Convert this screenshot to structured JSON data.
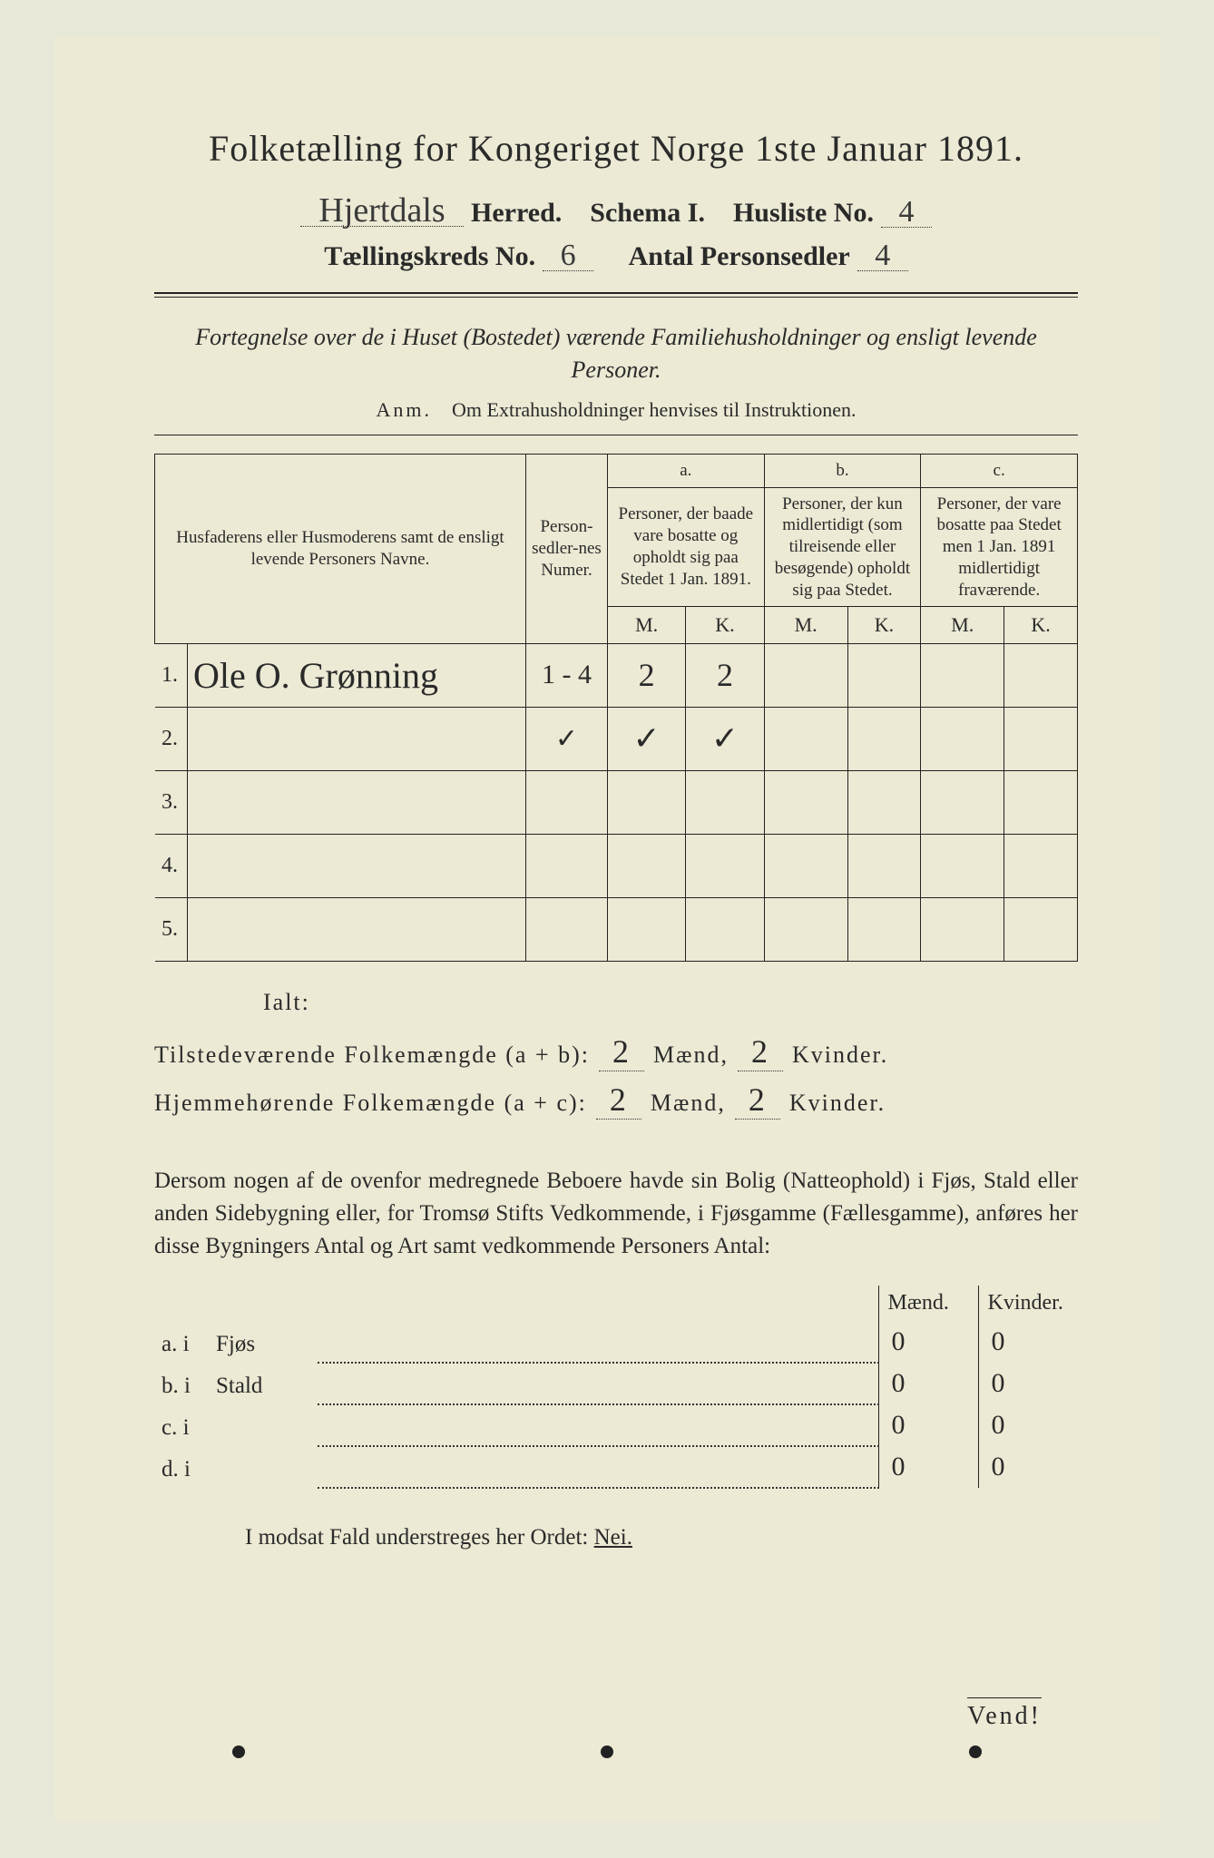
{
  "title": "Folketælling for Kongeriget Norge 1ste Januar 1891.",
  "header": {
    "herred_hand": "Hjertdals",
    "herred_label": "Herred.",
    "schema_label": "Schema I.",
    "husliste_label": "Husliste No.",
    "husliste_no": "4",
    "kreds_label": "Tællingskreds No.",
    "kreds_no": "6",
    "antal_label": "Antal Personsedler",
    "antal_no": "4"
  },
  "subtitle": "Fortegnelse over de i Huset (Bostedet) værende Familiehusholdninger og ensligt levende Personer.",
  "anm_prefix": "Anm.",
  "anm_text": "Om Extrahusholdninger henvises til Instruktionen.",
  "columns": {
    "c1": "Husfaderens eller Husmoderens samt de ensligt levende Personers Navne.",
    "c2": "Person-sedler-nes Numer.",
    "a_label": "a.",
    "a_text": "Personer, der baade vare bosatte og opholdt sig paa Stedet 1 Jan. 1891.",
    "b_label": "b.",
    "b_text": "Personer, der kun midlertidigt (som tilreisende eller besøgende) opholdt sig paa Stedet.",
    "c_label": "c.",
    "c_text": "Personer, der vare bosatte paa Stedet men 1 Jan. 1891 midlertidigt fraværende.",
    "M": "M.",
    "K": "K."
  },
  "rows": [
    {
      "n": "1.",
      "name": "Ole O. Grønning",
      "ps": "1 - 4",
      "aM": "2",
      "aK": "2",
      "bM": "",
      "bK": "",
      "cM": "",
      "cK": ""
    },
    {
      "n": "2.",
      "name": "",
      "ps": "✓",
      "aM": "✓",
      "aK": "✓",
      "bM": "",
      "bK": "",
      "cM": "",
      "cK": ""
    },
    {
      "n": "3.",
      "name": "",
      "ps": "",
      "aM": "",
      "aK": "",
      "bM": "",
      "bK": "",
      "cM": "",
      "cK": ""
    },
    {
      "n": "4.",
      "name": "",
      "ps": "",
      "aM": "",
      "aK": "",
      "bM": "",
      "bK": "",
      "cM": "",
      "cK": ""
    },
    {
      "n": "5.",
      "name": "",
      "ps": "",
      "aM": "",
      "aK": "",
      "bM": "",
      "bK": "",
      "cM": "",
      "cK": ""
    }
  ],
  "ialt": "Ialt:",
  "totals": {
    "t1_label": "Tilstedeværende Folkemængde (a + b):",
    "t1_m": "2",
    "t1_m_lab": "Mænd,",
    "t1_k": "2",
    "t1_k_lab": "Kvinder.",
    "t2_label": "Hjemmehørende Folkemængde (a + c):",
    "t2_m": "2",
    "t2_m_lab": "Mænd,",
    "t2_k": "2",
    "t2_k_lab": "Kvinder."
  },
  "para": "Dersom nogen af de ovenfor medregnede Beboere havde sin Bolig (Natteophold) i Fjøs, Stald eller anden Sidebygning eller, for Tromsø Stifts Vedkommende, i Fjøsgamme (Fællesgamme), anføres her disse Bygningers Antal og Art samt vedkommende Personers Antal:",
  "btable": {
    "hM": "Mænd.",
    "hK": "Kvinder.",
    "rows": [
      {
        "lab": "a.  i",
        "field": "Fjøs",
        "m": "0",
        "k": "0"
      },
      {
        "lab": "b.  i",
        "field": "Stald",
        "m": "0",
        "k": "0"
      },
      {
        "lab": "c.  i",
        "field": "",
        "m": "0",
        "k": "0"
      },
      {
        "lab": "d.  i",
        "field": "",
        "m": "0",
        "k": "0"
      }
    ]
  },
  "nei_pre": "I modsat Fald understreges her Ordet:",
  "nei": "Nei.",
  "vend": "Vend!"
}
